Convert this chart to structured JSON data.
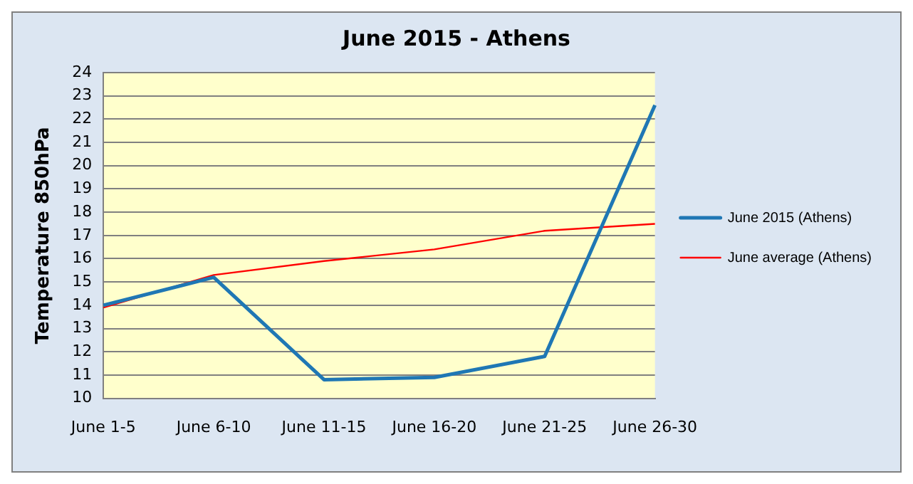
{
  "chart_data": {
    "type": "line",
    "title": "June 2015 - Athens",
    "ylabel": "Temperature 850hPa",
    "categories": [
      "June 1-5",
      "June 6-10",
      "June 11-15",
      "June 16-20",
      "June 21-25",
      "June 26-30"
    ],
    "series": [
      {
        "name": "June 2015 (Athens)",
        "color": "#1f77b4",
        "values": [
          14.0,
          15.2,
          10.8,
          10.9,
          11.8,
          22.6
        ]
      },
      {
        "name": "June average (Athens)",
        "color": "#ff0000",
        "values": [
          13.9,
          15.3,
          15.9,
          16.4,
          17.2,
          17.5
        ]
      }
    ],
    "ylim": [
      10,
      24
    ],
    "yticks": [
      10,
      11,
      12,
      13,
      14,
      15,
      16,
      17,
      18,
      19,
      20,
      21,
      22,
      23,
      24
    ],
    "grid": "y",
    "legend": "right",
    "marker": "none",
    "line_style": "solid"
  }
}
